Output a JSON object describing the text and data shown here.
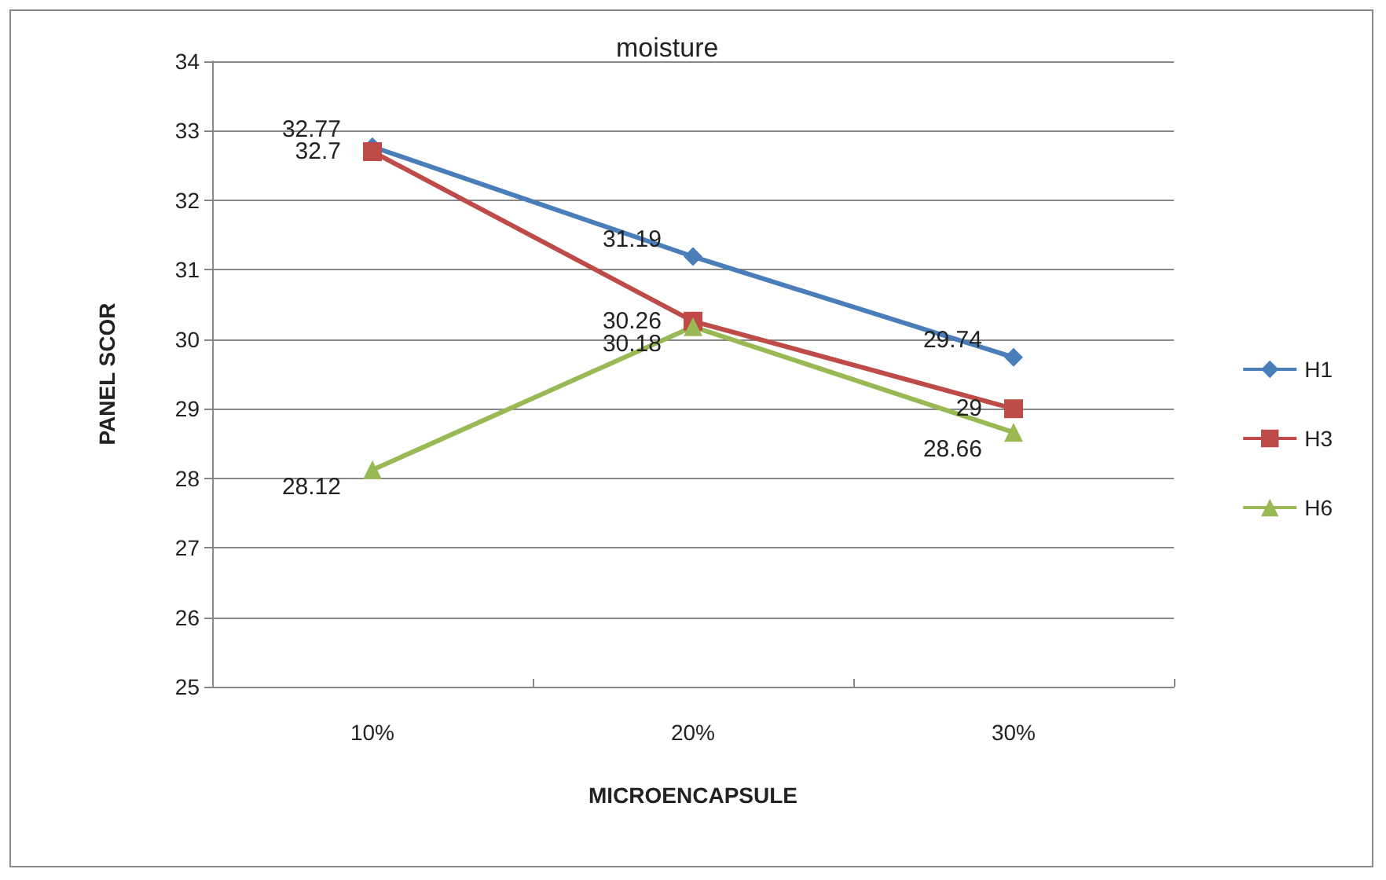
{
  "chart_data": {
    "type": "line",
    "title": "moisture",
    "xlabel": "MICROENCAPSULE",
    "ylabel": "PANEL SCOR",
    "categories": [
      "10%",
      "20%",
      "30%"
    ],
    "series": [
      {
        "name": "H1",
        "color": "#4a7ebb",
        "marker": "diamond",
        "values": [
          32.77,
          31.19,
          29.74
        ]
      },
      {
        "name": "H3",
        "color": "#be4b48",
        "marker": "square",
        "values": [
          32.7,
          30.26,
          29
        ]
      },
      {
        "name": "H6",
        "color": "#98b954",
        "marker": "triangle",
        "values": [
          28.12,
          30.18,
          28.66
        ]
      }
    ],
    "ylim": [
      25,
      34
    ],
    "yticks": [
      25,
      26,
      27,
      28,
      29,
      30,
      31,
      32,
      33,
      34
    ],
    "grid": "y",
    "legend": "right",
    "data_labels": true
  }
}
